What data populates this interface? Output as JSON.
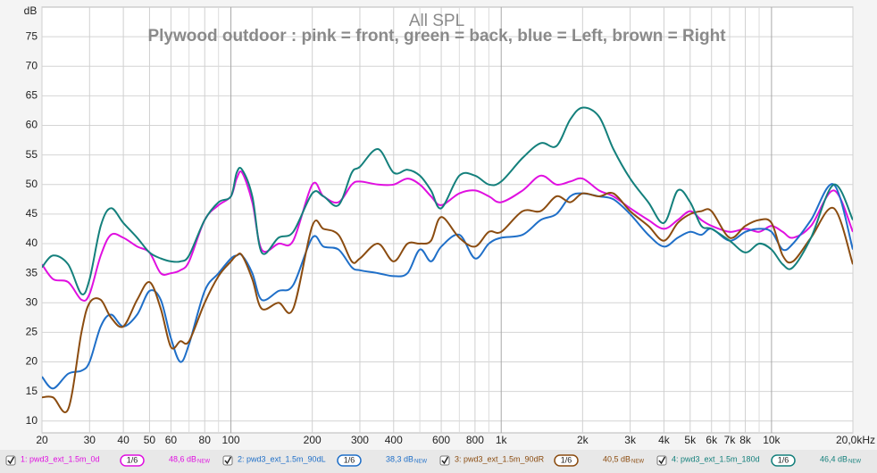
{
  "chart_data": {
    "type": "line",
    "title": "All SPL",
    "subtitle": "Plywood outdoor : pink = front, green = back, blue = Left, brown = Right",
    "y_axis_label": "dB",
    "x_scale": "log",
    "grid": true,
    "xlim": [
      20,
      20000
    ],
    "ylim": [
      8,
      80
    ],
    "yticks": [
      10,
      15,
      20,
      25,
      30,
      35,
      40,
      45,
      50,
      55,
      60,
      65,
      70,
      75
    ],
    "xticks": [
      20,
      30,
      40,
      50,
      60,
      80,
      100,
      200,
      300,
      400,
      600,
      800,
      {
        "value": 1000,
        "label": "1k"
      },
      {
        "value": 2000,
        "label": "2k"
      },
      {
        "value": 3000,
        "label": "3k"
      },
      {
        "value": 4000,
        "label": "4k"
      },
      {
        "value": 5000,
        "label": "5k"
      },
      {
        "value": 6000,
        "label": "6k"
      },
      {
        "value": 7000,
        "label": "7k"
      },
      {
        "value": 8000,
        "label": "8k"
      },
      {
        "value": 10000,
        "label": "10k"
      },
      {
        "value": 20000,
        "label": "20,0kHz"
      }
    ],
    "x_minor_ticks": [
      70,
      90,
      500,
      700,
      900,
      9000
    ],
    "x": [
      20,
      22,
      25,
      28,
      30,
      33,
      36,
      40,
      45,
      50,
      55,
      60,
      65,
      70,
      80,
      90,
      100,
      105,
      110,
      120,
      130,
      150,
      170,
      200,
      220,
      250,
      280,
      300,
      350,
      400,
      450,
      500,
      550,
      600,
      700,
      800,
      900,
      1000,
      1200,
      1400,
      1600,
      1800,
      2000,
      2300,
      2600,
      3000,
      3500,
      4000,
      4500,
      5000,
      5500,
      6000,
      7000,
      8000,
      9000,
      10000,
      11000,
      12000,
      14000,
      17000,
      20000
    ],
    "series": [
      {
        "name": "1: pwd3_ext_1.5m_0d",
        "color": "#e010e0",
        "smoothing": "1/6",
        "level": "48,6 dB",
        "badge": "NEW",
        "values": [
          36.5,
          34,
          33.5,
          30.5,
          31.5,
          38,
          41.5,
          41,
          39.5,
          38.5,
          35,
          35,
          35.5,
          37,
          44,
          46.5,
          48,
          51,
          52,
          47,
          39,
          40,
          40.5,
          50,
          48,
          47,
          50,
          50.5,
          50,
          50,
          51,
          50,
          48,
          46.5,
          48.5,
          49,
          48,
          47,
          49,
          51.5,
          50,
          50.5,
          51,
          49,
          48,
          46,
          44,
          42.5,
          44,
          45.5,
          44,
          43,
          42,
          42.5,
          42,
          43,
          42,
          41,
          43,
          49,
          42
        ]
      },
      {
        "name": "2: pwd3_ext_1.5m_90dL",
        "color": "#1f6fc8",
        "smoothing": "1/6",
        "level": "38,3 dB",
        "badge": "NEW",
        "values": [
          17.5,
          15.5,
          18,
          18.5,
          20,
          26,
          28,
          26,
          28,
          32,
          30.5,
          24,
          20,
          23,
          32,
          35,
          37.5,
          38,
          38,
          35,
          30.5,
          32,
          33,
          41,
          39.5,
          39,
          36,
          35.5,
          35,
          34.5,
          35,
          39,
          37,
          39.5,
          41.5,
          37.5,
          40,
          41,
          41.5,
          44,
          45,
          48,
          48.5,
          48,
          47.5,
          45,
          41.5,
          39.5,
          41,
          42,
          41.5,
          42.5,
          40.5,
          42,
          42.5,
          42,
          39,
          40,
          44,
          50,
          39
        ]
      },
      {
        "name": "3: pwd3_ext_1.5m_90dR",
        "color": "#8b4c10",
        "smoothing": "1/6",
        "level": "40,5 dB",
        "badge": "NEW",
        "values": [
          14,
          14,
          12,
          25,
          30,
          30.5,
          27.5,
          26,
          30.5,
          33.5,
          29,
          22.5,
          23.5,
          23.5,
          30,
          34.5,
          37,
          38,
          38,
          34,
          29,
          30,
          29,
          43,
          42.5,
          41.5,
          37,
          37.5,
          40,
          37,
          40,
          40,
          40.5,
          44.5,
          41,
          39.5,
          42,
          42,
          45.5,
          45.5,
          48,
          47,
          48.5,
          48,
          48.5,
          45.5,
          43,
          40.5,
          43.5,
          45,
          45.5,
          45.5,
          41,
          43,
          44,
          43.5,
          38,
          37,
          41,
          46,
          36.5
        ]
      },
      {
        "name": "4: pwd3_ext_1.5m_180d",
        "color": "#14807c",
        "smoothing": "1/6",
        "level": "46,4 dB",
        "badge": "NEW",
        "values": [
          36,
          38,
          36.5,
          31.5,
          34,
          43,
          46,
          43.5,
          41,
          38.5,
          37.5,
          37,
          37,
          38,
          44,
          47,
          48,
          52,
          52.5,
          48,
          38.5,
          41,
          42,
          48.5,
          48,
          46.5,
          52,
          53,
          56,
          52,
          52.5,
          51.5,
          49,
          46,
          51.5,
          51.5,
          50,
          50.5,
          54.5,
          57,
          56.5,
          61,
          63,
          61.5,
          56,
          51,
          47,
          43.5,
          49,
          47,
          43,
          42.5,
          40.5,
          38.5,
          40,
          39,
          36.5,
          36,
          41,
          50,
          44
        ]
      }
    ]
  }
}
